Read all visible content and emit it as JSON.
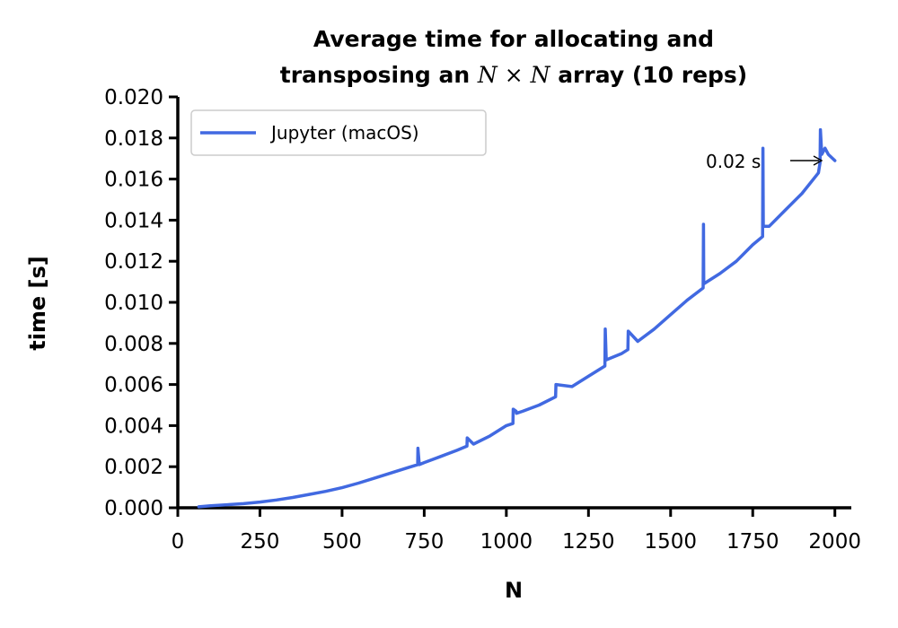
{
  "chart_data": {
    "type": "line",
    "title_line1": "Average time for allocating and",
    "title_line2_pre": "transposing an ",
    "title_line2_math": "N × N",
    "title_line2_post": " array (10 reps)",
    "xlabel": "N",
    "ylabel": "time [s]",
    "xlim": [
      0,
      2050
    ],
    "ylim": [
      0,
      0.02
    ],
    "xticks": [
      0,
      250,
      500,
      750,
      1000,
      1250,
      1500,
      1750,
      2000
    ],
    "xtick_labels": [
      "0",
      "250",
      "500",
      "750",
      "1000",
      "1250",
      "1500",
      "1750",
      "2000"
    ],
    "yticks": [
      0.0,
      0.002,
      0.004,
      0.006,
      0.008,
      0.01,
      0.012,
      0.014,
      0.016,
      0.018,
      0.02
    ],
    "ytick_labels": [
      "0.000",
      "0.002",
      "0.004",
      "0.006",
      "0.008",
      "0.010",
      "0.012",
      "0.014",
      "0.016",
      "0.018",
      "0.020"
    ],
    "grid": false,
    "legend": {
      "location": "upper-left",
      "entries": [
        "Jupyter (macOS)"
      ]
    },
    "annotation": {
      "text": "0.02 s",
      "x": 2000,
      "y": 0.017
    },
    "series": [
      {
        "name": "Jupyter (macOS)",
        "color": "#4169E1",
        "x": [
          64,
          100,
          150,
          200,
          250,
          300,
          350,
          400,
          450,
          500,
          550,
          600,
          650,
          700,
          730,
          731,
          735,
          750,
          800,
          850,
          880,
          881,
          900,
          950,
          1000,
          1020,
          1021,
          1030,
          1031,
          1050,
          1100,
          1150,
          1151,
          1200,
          1250,
          1300,
          1301,
          1304,
          1350,
          1370,
          1371,
          1400,
          1450,
          1500,
          1550,
          1599,
          1600,
          1601,
          1650,
          1700,
          1750,
          1780,
          1781,
          1782,
          1800,
          1850,
          1900,
          1950,
          1955,
          1956,
          1960,
          1970,
          1980,
          2000
        ],
        "y": [
          5e-05,
          0.0001,
          0.00015,
          0.0002,
          0.00028,
          0.00038,
          0.0005,
          0.00065,
          0.0008,
          0.00098,
          0.0012,
          0.00145,
          0.0017,
          0.00195,
          0.0021,
          0.0029,
          0.0021,
          0.0022,
          0.0025,
          0.0028,
          0.003,
          0.0034,
          0.0031,
          0.0035,
          0.004,
          0.0041,
          0.0048,
          0.0047,
          0.0046,
          0.0047,
          0.005,
          0.0054,
          0.006,
          0.0059,
          0.0064,
          0.0069,
          0.0087,
          0.0072,
          0.0075,
          0.0077,
          0.0086,
          0.0081,
          0.0087,
          0.0094,
          0.0101,
          0.0107,
          0.0138,
          0.0109,
          0.0114,
          0.012,
          0.0128,
          0.0132,
          0.0175,
          0.0137,
          0.0137,
          0.0145,
          0.0153,
          0.0163,
          0.0168,
          0.0184,
          0.0172,
          0.0175,
          0.0172,
          0.0169
        ]
      }
    ]
  }
}
